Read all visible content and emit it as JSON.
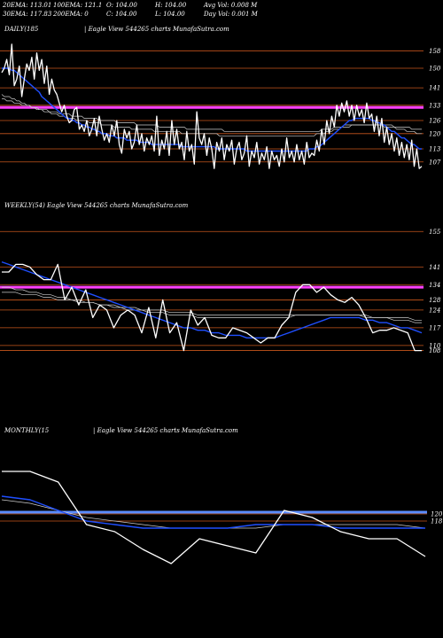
{
  "header": {
    "ema20": "20EMA: 113.01",
    "ema100": "100EMA: 121.1",
    "open": "O: 104.00",
    "high": "H: 104.00",
    "avgvol": "Avg Vol: 0.008 M",
    "ema30": "30EMA: 117.83",
    "ema200": "200EMA: 0",
    "close": "C: 104.00",
    "low": "L: 104.00",
    "dayvol": "Day Vol: 0.001 M"
  },
  "colors": {
    "background": "#000000",
    "price": "#ffffff",
    "ema_fast": "#1f4fff",
    "ema_slow": "#cccccc",
    "level": "#c8561c",
    "highlight_daily": "#ff40ff",
    "highlight_monthly": "#5a8cff"
  },
  "chart_data": [
    {
      "type": "line",
      "title": "DAILY(185",
      "subtitle": "| Eagle  View  544265 charts MunafaSutra.com",
      "ylim": [
        100,
        163
      ],
      "level_ticks": [
        158,
        150,
        141,
        133,
        126,
        120,
        113,
        107
      ],
      "highlight_level": 132,
      "series": [
        {
          "role": "price",
          "values": [
            148,
            150,
            154,
            147,
            161,
            142,
            145,
            151,
            137,
            145,
            152,
            149,
            155,
            145,
            157,
            149,
            154,
            143,
            151,
            138,
            145,
            140,
            138,
            134,
            130,
            133,
            128,
            125,
            126,
            131,
            132,
            122,
            124,
            121,
            126,
            119,
            122,
            127,
            119,
            128,
            122,
            117,
            120,
            116,
            124,
            119,
            126,
            115,
            111,
            122,
            118,
            121,
            113,
            116,
            124,
            115,
            120,
            112,
            118,
            115,
            119,
            112,
            128,
            110,
            117,
            113,
            121,
            110,
            126,
            115,
            122,
            113,
            116,
            108,
            121,
            112,
            115,
            106,
            130,
            118,
            115,
            120,
            110,
            118,
            113,
            104,
            116,
            112,
            118,
            108,
            115,
            112,
            117,
            106,
            113,
            116,
            108,
            111,
            119,
            105,
            112,
            109,
            116,
            106,
            111,
            108,
            114,
            104,
            112,
            108,
            110,
            105,
            113,
            107,
            118,
            109,
            112,
            107,
            115,
            108,
            112,
            106,
            116,
            109,
            111,
            110,
            117,
            112,
            122,
            115,
            126,
            120,
            128,
            123,
            133,
            128,
            134,
            130,
            135,
            128,
            133,
            126,
            133,
            128,
            131,
            125,
            134,
            127,
            129,
            121,
            128,
            119,
            127,
            116,
            123,
            115,
            120,
            112,
            118,
            110,
            116,
            109,
            115,
            108,
            117,
            105,
            113,
            104,
            105
          ]
        },
        {
          "role": "ema_fast",
          "values": [
            150,
            150,
            150,
            150,
            149,
            149,
            148,
            147,
            146,
            145,
            144,
            143,
            142,
            141,
            140,
            139,
            137,
            136,
            135,
            134,
            133,
            132,
            131,
            130,
            129,
            128,
            127,
            127,
            126,
            126,
            125,
            125,
            124,
            124,
            123,
            123,
            122,
            122,
            121,
            121,
            120,
            120,
            120,
            119,
            119,
            119,
            118,
            118,
            118,
            118,
            117,
            117,
            117,
            117,
            117,
            116,
            116,
            116,
            116,
            116,
            115,
            115,
            115,
            115,
            115,
            115,
            115,
            115,
            115,
            115,
            115,
            115,
            114,
            114,
            114,
            114,
            114,
            114,
            114,
            114,
            114,
            114,
            114,
            114,
            114,
            114,
            113,
            113,
            113,
            113,
            113,
            113,
            113,
            113,
            113,
            113,
            113,
            113,
            112,
            112,
            112,
            112,
            112,
            112,
            112,
            112,
            112,
            112,
            112,
            112,
            112,
            112,
            112,
            112,
            112,
            112,
            112,
            112,
            112,
            112,
            112,
            112,
            112,
            113,
            113,
            113,
            114,
            114,
            115,
            116,
            117,
            118,
            119,
            120,
            121,
            122,
            123,
            124,
            125,
            126,
            126,
            127,
            127,
            127,
            127,
            127,
            127,
            127,
            126,
            126,
            125,
            125,
            124,
            124,
            123,
            122,
            121,
            121,
            120,
            119,
            118,
            118,
            117,
            116,
            115,
            115,
            114,
            113,
            113
          ]
        },
        {
          "role": "ema_slow",
          "values": [
            138,
            137,
            137,
            137,
            136,
            136,
            135,
            135,
            134,
            134,
            133,
            133,
            132,
            132,
            131,
            131,
            131,
            130,
            130,
            130,
            129,
            129,
            129,
            128,
            128,
            128,
            127,
            127,
            127,
            127,
            126,
            126,
            126,
            126,
            126,
            125,
            125,
            125,
            125,
            125,
            124,
            124,
            124,
            124,
            124,
            123,
            123,
            123,
            123,
            123,
            123,
            123,
            122,
            122,
            122,
            122,
            122,
            122,
            122,
            122,
            122,
            121,
            121,
            121,
            121,
            121,
            121,
            121,
            121,
            121,
            121,
            121,
            120,
            120,
            120,
            120,
            120,
            120,
            120,
            120,
            120,
            120,
            120,
            120,
            120,
            120,
            120,
            119,
            119,
            119,
            119,
            119,
            119,
            119,
            119,
            119,
            119,
            119,
            119,
            119,
            119,
            119,
            119,
            119,
            119,
            119,
            119,
            119,
            119,
            119,
            119,
            119,
            119,
            119,
            119,
            119,
            119,
            119,
            119,
            119,
            119,
            119,
            119,
            119,
            119,
            119,
            120,
            120,
            120,
            120,
            121,
            121,
            121,
            122,
            122,
            122,
            123,
            123,
            123,
            123,
            124,
            124,
            124,
            124,
            124,
            124,
            124,
            124,
            124,
            124,
            124,
            124,
            124,
            123,
            123,
            123,
            123,
            123,
            122,
            122,
            122,
            122,
            121,
            121,
            121,
            121,
            120,
            120,
            120
          ]
        },
        {
          "role": "ema_long",
          "values": [
            136,
            136,
            135,
            135,
            135,
            134,
            134,
            134,
            133,
            133,
            133,
            133,
            132,
            132,
            132,
            131,
            131,
            131,
            131,
            130,
            130,
            130,
            130,
            129,
            129,
            129,
            129,
            129,
            128,
            128,
            128,
            128,
            128,
            127,
            127,
            127,
            127,
            127,
            127,
            126,
            126,
            126,
            126,
            126,
            126,
            126,
            125,
            125,
            125,
            125,
            125,
            125,
            125,
            125,
            124,
            124,
            124,
            124,
            124,
            124,
            124,
            124,
            124,
            123,
            123,
            123,
            123,
            123,
            123,
            123,
            123,
            123,
            123,
            123,
            122,
            122,
            122,
            122,
            122,
            122,
            122,
            122,
            122,
            122,
            122,
            122,
            122,
            122,
            122,
            121,
            121,
            121,
            121,
            121,
            121,
            121,
            121,
            121,
            121,
            121,
            121,
            121,
            121,
            121,
            121,
            121,
            121,
            121,
            121,
            121,
            121,
            121,
            121,
            121,
            121,
            121,
            121,
            121,
            121,
            121,
            121,
            121,
            121,
            121,
            121,
            121,
            121,
            121,
            122,
            122,
            122,
            122,
            122,
            123,
            123,
            123,
            123,
            124,
            124,
            124,
            124,
            124,
            124,
            124,
            124,
            124,
            124,
            124,
            124,
            124,
            124,
            124,
            124,
            124,
            124,
            124,
            124,
            123,
            123,
            123,
            123,
            123,
            123,
            123,
            122,
            122,
            122,
            122,
            122
          ]
        }
      ]
    },
    {
      "type": "line",
      "title": "WEEKLY(54) Eagle  View  544265 charts MunafaSutra.com",
      "ylim": [
        104,
        160
      ],
      "level_ticks": [
        155,
        141,
        134,
        128,
        124,
        117,
        110,
        108
      ],
      "highlight_level": 133,
      "series": [
        {
          "role": "price",
          "values": [
            139,
            139,
            142,
            142,
            141,
            138,
            136,
            136,
            142,
            128,
            133,
            126,
            132,
            121,
            126,
            124,
            117,
            122,
            124,
            122,
            115,
            125,
            113,
            128,
            115,
            119,
            108,
            124,
            118,
            121,
            114,
            113,
            113,
            117,
            116,
            115,
            113,
            111,
            113,
            113,
            118,
            121,
            131,
            134,
            134,
            131,
            133,
            130,
            128,
            127,
            129,
            126,
            121,
            115,
            116,
            116,
            117,
            116,
            115,
            108,
            108
          ]
        },
        {
          "role": "ema_fast",
          "values": [
            143,
            142,
            141,
            140,
            139,
            138,
            137,
            136,
            135,
            134,
            133,
            132,
            131,
            130,
            129,
            128,
            127,
            126,
            125,
            124,
            123,
            122,
            121,
            120,
            119,
            118,
            117,
            117,
            116,
            116,
            115,
            115,
            114,
            114,
            114,
            113,
            113,
            113,
            113,
            113,
            114,
            115,
            116,
            117,
            118,
            119,
            120,
            121,
            121,
            121,
            121,
            121,
            120,
            120,
            119,
            119,
            118,
            117,
            117,
            116,
            115
          ]
        },
        {
          "role": "ema_slow",
          "values": [
            133,
            133,
            132,
            132,
            131,
            131,
            130,
            130,
            129,
            129,
            128,
            128,
            127,
            127,
            126,
            126,
            125,
            125,
            124,
            124,
            124,
            123,
            123,
            123,
            122,
            122,
            122,
            122,
            121,
            121,
            121,
            121,
            121,
            121,
            121,
            121,
            121,
            121,
            121,
            121,
            121,
            121,
            122,
            122,
            122,
            122,
            122,
            122,
            122,
            122,
            122,
            122,
            121,
            121,
            121,
            121,
            120,
            120,
            120,
            119,
            119
          ]
        },
        {
          "role": "ema_long",
          "values": [
            131,
            131,
            131,
            130,
            130,
            130,
            129,
            129,
            128,
            128,
            128,
            127,
            127,
            127,
            126,
            126,
            126,
            125,
            125,
            125,
            124,
            124,
            124,
            124,
            123,
            123,
            123,
            123,
            122,
            122,
            122,
            122,
            122,
            122,
            122,
            122,
            122,
            122,
            122,
            122,
            122,
            122,
            122,
            122,
            122,
            122,
            122,
            122,
            122,
            122,
            122,
            122,
            122,
            121,
            121,
            121,
            121,
            121,
            121,
            120,
            120
          ]
        }
      ]
    },
    {
      "type": "line",
      "title": "MONTHLY(15",
      "subtitle": "| Eagle  View  544265 charts MunafaSutra.com",
      "ylim": [
        100,
        140
      ],
      "level_ticks": [
        120,
        118
      ],
      "highlight_level": 120.5,
      "series": [
        {
          "role": "price",
          "values": [
            132,
            132,
            129,
            117,
            115,
            110,
            106,
            113,
            111,
            109,
            121,
            119,
            115,
            113,
            113,
            108
          ]
        },
        {
          "role": "ema_fast",
          "values": [
            125,
            124,
            121,
            118,
            117,
            116,
            116,
            116,
            116,
            117,
            117,
            117,
            116,
            116,
            116,
            116
          ]
        },
        {
          "role": "ema_slow",
          "values": [
            124,
            123,
            121,
            119,
            118,
            117,
            116,
            116,
            116,
            116,
            117,
            117,
            117,
            117,
            117,
            116
          ]
        }
      ]
    }
  ]
}
